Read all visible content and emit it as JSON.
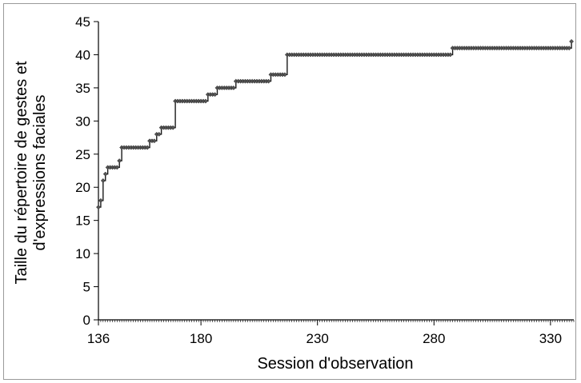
{
  "chart_data": {
    "type": "line",
    "title": "",
    "xlabel": "Session d'observation",
    "ylabel_lines": [
      "Taille du répertoire de gestes et",
      "d'expressions faciales"
    ],
    "xlim": [
      136,
      340
    ],
    "ylim": [
      0,
      45
    ],
    "x_ticks": [
      136,
      180,
      230,
      280,
      330
    ],
    "y_ticks": [
      0,
      5,
      10,
      15,
      20,
      25,
      30,
      35,
      40,
      45
    ],
    "grid": false,
    "legend": "none",
    "series": [
      {
        "color": "#1a1a1a",
        "marker": "diamond",
        "points": [
          [
            136,
            17
          ],
          [
            137,
            18
          ],
          [
            138,
            21
          ],
          [
            139,
            22
          ],
          [
            140,
            23
          ],
          [
            141,
            23
          ],
          [
            142,
            23
          ],
          [
            143,
            23
          ],
          [
            144,
            23
          ],
          [
            145,
            24
          ],
          [
            146,
            26
          ],
          [
            147,
            26
          ],
          [
            148,
            26
          ],
          [
            149,
            26
          ],
          [
            150,
            26
          ],
          [
            151,
            26
          ],
          [
            152,
            26
          ],
          [
            153,
            26
          ],
          [
            154,
            26
          ],
          [
            155,
            26
          ],
          [
            156,
            26
          ],
          [
            157,
            26
          ],
          [
            158,
            27
          ],
          [
            159,
            27
          ],
          [
            160,
            27
          ],
          [
            161,
            28
          ],
          [
            162,
            28
          ],
          [
            163,
            29
          ],
          [
            164,
            29
          ],
          [
            165,
            29
          ],
          [
            166,
            29
          ],
          [
            167,
            29
          ],
          [
            168,
            29
          ],
          [
            169,
            33
          ],
          [
            170,
            33
          ],
          [
            171,
            33
          ],
          [
            172,
            33
          ],
          [
            173,
            33
          ],
          [
            174,
            33
          ],
          [
            175,
            33
          ],
          [
            176,
            33
          ],
          [
            177,
            33
          ],
          [
            178,
            33
          ],
          [
            179,
            33
          ],
          [
            180,
            33
          ],
          [
            181,
            33
          ],
          [
            182,
            33
          ],
          [
            183,
            34
          ],
          [
            184,
            34
          ],
          [
            185,
            34
          ],
          [
            186,
            34
          ],
          [
            187,
            35
          ],
          [
            188,
            35
          ],
          [
            189,
            35
          ],
          [
            190,
            35
          ],
          [
            191,
            35
          ],
          [
            192,
            35
          ],
          [
            193,
            35
          ],
          [
            194,
            35
          ],
          [
            195,
            36
          ],
          [
            196,
            36
          ],
          [
            197,
            36
          ],
          [
            198,
            36
          ],
          [
            199,
            36
          ],
          [
            200,
            36
          ],
          [
            201,
            36
          ],
          [
            202,
            36
          ],
          [
            203,
            36
          ],
          [
            204,
            36
          ],
          [
            205,
            36
          ],
          [
            206,
            36
          ],
          [
            207,
            36
          ],
          [
            208,
            36
          ],
          [
            209,
            36
          ],
          [
            210,
            37
          ],
          [
            211,
            37
          ],
          [
            212,
            37
          ],
          [
            213,
            37
          ],
          [
            214,
            37
          ],
          [
            215,
            37
          ],
          [
            216,
            37
          ],
          [
            217,
            40
          ],
          [
            218,
            40
          ],
          [
            219,
            40
          ],
          [
            220,
            40
          ],
          [
            221,
            40
          ],
          [
            222,
            40
          ],
          [
            223,
            40
          ],
          [
            224,
            40
          ],
          [
            225,
            40
          ],
          [
            226,
            40
          ],
          [
            227,
            40
          ],
          [
            228,
            40
          ],
          [
            229,
            40
          ],
          [
            230,
            40
          ],
          [
            231,
            40
          ],
          [
            232,
            40
          ],
          [
            233,
            40
          ],
          [
            234,
            40
          ],
          [
            235,
            40
          ],
          [
            236,
            40
          ],
          [
            237,
            40
          ],
          [
            238,
            40
          ],
          [
            239,
            40
          ],
          [
            240,
            40
          ],
          [
            241,
            40
          ],
          [
            242,
            40
          ],
          [
            243,
            40
          ],
          [
            244,
            40
          ],
          [
            245,
            40
          ],
          [
            246,
            40
          ],
          [
            247,
            40
          ],
          [
            248,
            40
          ],
          [
            249,
            40
          ],
          [
            250,
            40
          ],
          [
            251,
            40
          ],
          [
            252,
            40
          ],
          [
            253,
            40
          ],
          [
            254,
            40
          ],
          [
            255,
            40
          ],
          [
            256,
            40
          ],
          [
            257,
            40
          ],
          [
            258,
            40
          ],
          [
            259,
            40
          ],
          [
            260,
            40
          ],
          [
            261,
            40
          ],
          [
            262,
            40
          ],
          [
            263,
            40
          ],
          [
            264,
            40
          ],
          [
            265,
            40
          ],
          [
            266,
            40
          ],
          [
            267,
            40
          ],
          [
            268,
            40
          ],
          [
            269,
            40
          ],
          [
            270,
            40
          ],
          [
            271,
            40
          ],
          [
            272,
            40
          ],
          [
            273,
            40
          ],
          [
            274,
            40
          ],
          [
            275,
            40
          ],
          [
            276,
            40
          ],
          [
            277,
            40
          ],
          [
            278,
            40
          ],
          [
            279,
            40
          ],
          [
            280,
            40
          ],
          [
            281,
            40
          ],
          [
            282,
            40
          ],
          [
            283,
            40
          ],
          [
            284,
            40
          ],
          [
            285,
            40
          ],
          [
            286,
            40
          ],
          [
            287,
            40
          ],
          [
            288,
            41
          ],
          [
            289,
            41
          ],
          [
            290,
            41
          ],
          [
            291,
            41
          ],
          [
            292,
            41
          ],
          [
            293,
            41
          ],
          [
            294,
            41
          ],
          [
            295,
            41
          ],
          [
            296,
            41
          ],
          [
            297,
            41
          ],
          [
            298,
            41
          ],
          [
            299,
            41
          ],
          [
            300,
            41
          ],
          [
            301,
            41
          ],
          [
            302,
            41
          ],
          [
            303,
            41
          ],
          [
            304,
            41
          ],
          [
            305,
            41
          ],
          [
            306,
            41
          ],
          [
            307,
            41
          ],
          [
            308,
            41
          ],
          [
            309,
            41
          ],
          [
            310,
            41
          ],
          [
            311,
            41
          ],
          [
            312,
            41
          ],
          [
            313,
            41
          ],
          [
            314,
            41
          ],
          [
            315,
            41
          ],
          [
            316,
            41
          ],
          [
            317,
            41
          ],
          [
            318,
            41
          ],
          [
            319,
            41
          ],
          [
            320,
            41
          ],
          [
            321,
            41
          ],
          [
            322,
            41
          ],
          [
            323,
            41
          ],
          [
            324,
            41
          ],
          [
            325,
            41
          ],
          [
            326,
            41
          ],
          [
            327,
            41
          ],
          [
            328,
            41
          ],
          [
            329,
            41
          ],
          [
            330,
            41
          ],
          [
            331,
            41
          ],
          [
            332,
            41
          ],
          [
            333,
            41
          ],
          [
            334,
            41
          ],
          [
            335,
            41
          ],
          [
            336,
            41
          ],
          [
            337,
            41
          ],
          [
            338,
            41
          ],
          [
            339,
            42
          ]
        ]
      }
    ]
  }
}
